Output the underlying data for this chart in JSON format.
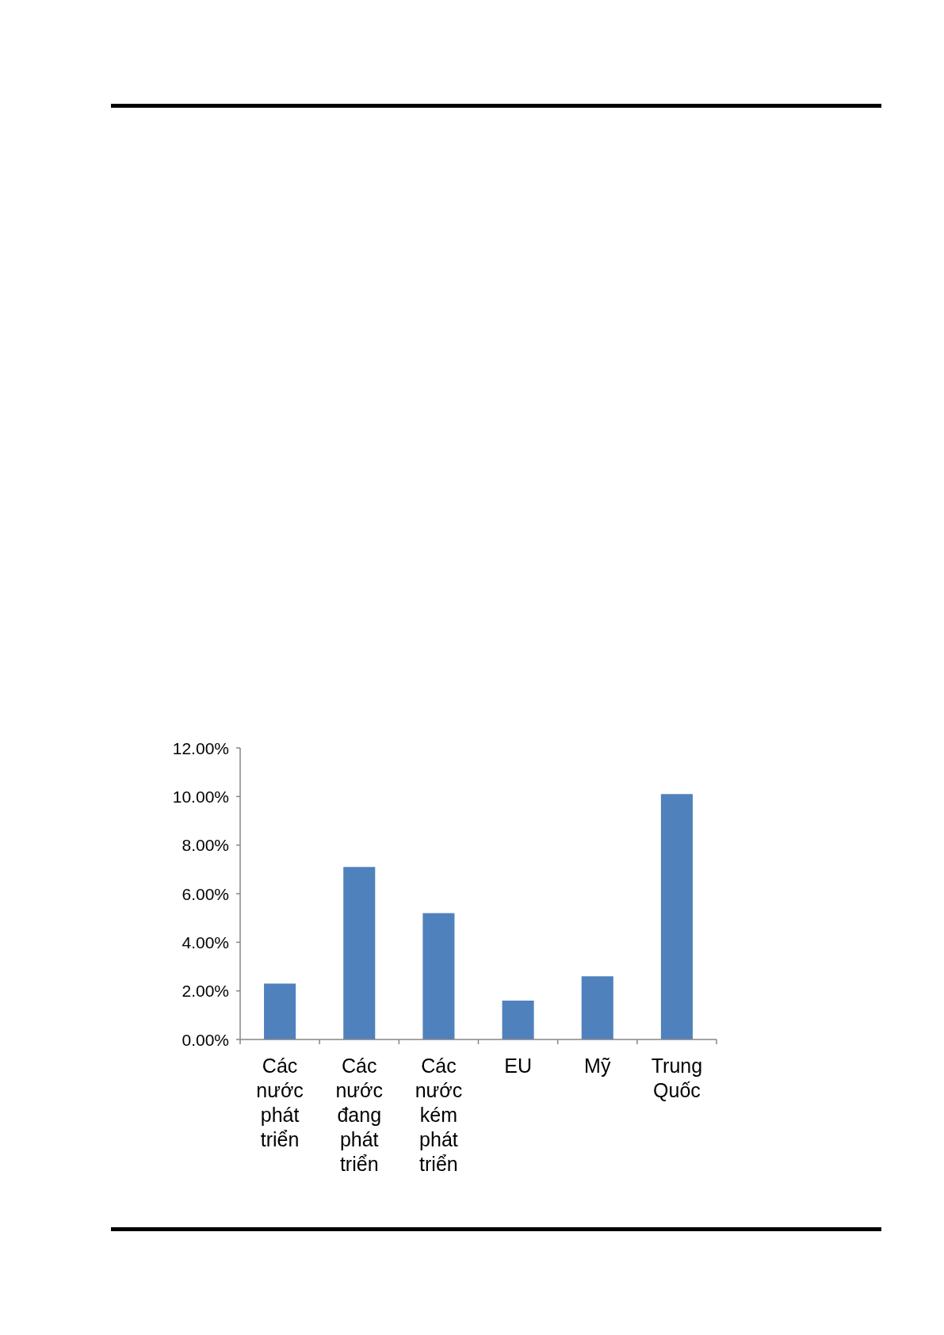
{
  "chart_data": {
    "type": "bar",
    "categories": [
      "Các nước phát triển",
      "Các nước đang phát triển",
      "Các nước kém phát triển",
      "EU",
      "Mỹ",
      "Trung Quốc"
    ],
    "values": [
      2.3,
      7.1,
      5.2,
      1.6,
      2.6,
      10.1
    ],
    "color": "#4f81bd",
    "ylim": [
      0,
      12
    ],
    "yticks": [
      {
        "value": 0,
        "label": "0.00%"
      },
      {
        "value": 2,
        "label": "2.00%"
      },
      {
        "value": 4,
        "label": "4.00%"
      },
      {
        "value": 6,
        "label": "6.00%"
      },
      {
        "value": 8,
        "label": "8.00%"
      },
      {
        "value": 10,
        "label": "10.00%"
      },
      {
        "value": 12,
        "label": "12.00%"
      }
    ],
    "grid": false
  }
}
